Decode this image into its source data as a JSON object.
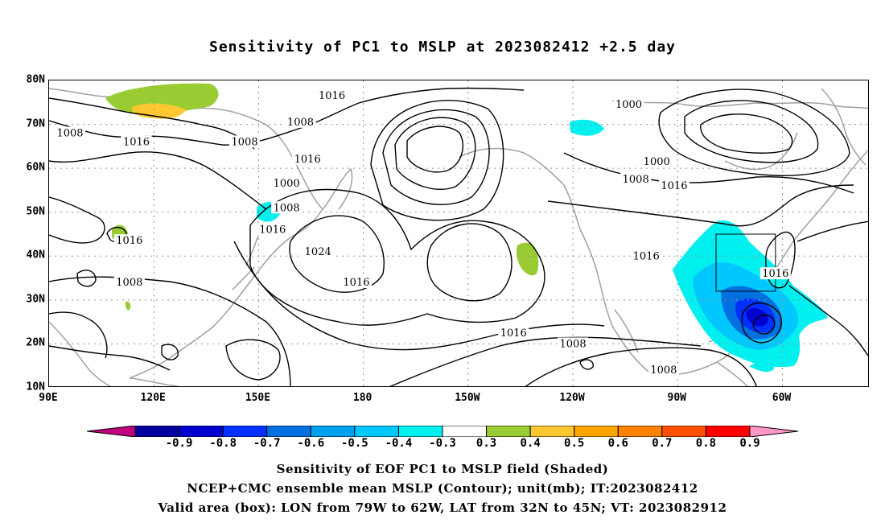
{
  "title": "Sensitivity of PC1 to MSLP at 2023082412 +2.5 day",
  "axes": {
    "lat_labels": [
      "80N",
      "70N",
      "60N",
      "50N",
      "40N",
      "30N",
      "20N",
      "10N"
    ],
    "lon_labels": [
      "90E",
      "120E",
      "150E",
      "180",
      "150W",
      "120W",
      "90W",
      "60W"
    ]
  },
  "contour_labels": [
    {
      "text": "1016",
      "lon": 171,
      "lat": 76.5
    },
    {
      "text": "1008",
      "lon": 162,
      "lat": 70.5
    },
    {
      "text": "1000",
      "lon": 256,
      "lat": 74.5
    },
    {
      "text": "1008",
      "lon": 96,
      "lat": 68
    },
    {
      "text": "1016",
      "lon": 115,
      "lat": 66
    },
    {
      "text": "1008",
      "lon": 146,
      "lat": 66
    },
    {
      "text": "1016",
      "lon": 164,
      "lat": 62
    },
    {
      "text": "1000",
      "lon": 158,
      "lat": 56.5
    },
    {
      "text": "1008",
      "lon": 158,
      "lat": 51
    },
    {
      "text": "1000",
      "lon": 264,
      "lat": 61.5
    },
    {
      "text": "1008",
      "lon": 258,
      "lat": 57.5
    },
    {
      "text": "1016",
      "lon": 269,
      "lat": 56
    },
    {
      "text": "1016",
      "lon": 113,
      "lat": 43.5
    },
    {
      "text": "1016",
      "lon": 154,
      "lat": 46
    },
    {
      "text": "1024",
      "lon": 167,
      "lat": 41
    },
    {
      "text": "1016",
      "lon": 261,
      "lat": 40
    },
    {
      "text": "1016",
      "lon": 298,
      "lat": 36
    },
    {
      "text": "1008",
      "lon": 113,
      "lat": 34
    },
    {
      "text": "1016",
      "lon": 178,
      "lat": 34
    },
    {
      "text": "1016",
      "lon": 223,
      "lat": 22.5
    },
    {
      "text": "1008",
      "lon": 240,
      "lat": 20
    },
    {
      "text": "1008",
      "lon": 266,
      "lat": 14
    }
  ],
  "valid_box": {
    "lon_min": 281,
    "lon_max": 298,
    "lat_min": 32,
    "lat_max": 45
  },
  "colorbar": {
    "colors": [
      "#c0007c",
      "#0000a0",
      "#0000d0",
      "#0030ff",
      "#0070e0",
      "#00a0f0",
      "#00c8ff",
      "#00f0f0",
      "#ffffff",
      "#99cc33",
      "#ffc832",
      "#ffa500",
      "#ff8200",
      "#ff5000",
      "#ff0000",
      "#ff96c8"
    ],
    "labels": [
      "-0.9",
      "-0.8",
      "-0.7",
      "-0.6",
      "-0.5",
      "-0.4",
      "-0.3",
      "0.3",
      "0.4",
      "0.5",
      "0.6",
      "0.7",
      "0.8",
      "0.9"
    ]
  },
  "captions": [
    "Sensitivity of EOF PC1 to MSLP field (Shaded)",
    "NCEP+CMC ensemble mean MSLP (Contour); unit(mb); IT:2023082412",
    "Valid area (box): LON from 79W to 62W, LAT from 32N to 45N; VT: 2023082912"
  ],
  "colors": {
    "contour": "#000000",
    "coastline": "#a0a0a0",
    "grid": "#909090"
  }
}
